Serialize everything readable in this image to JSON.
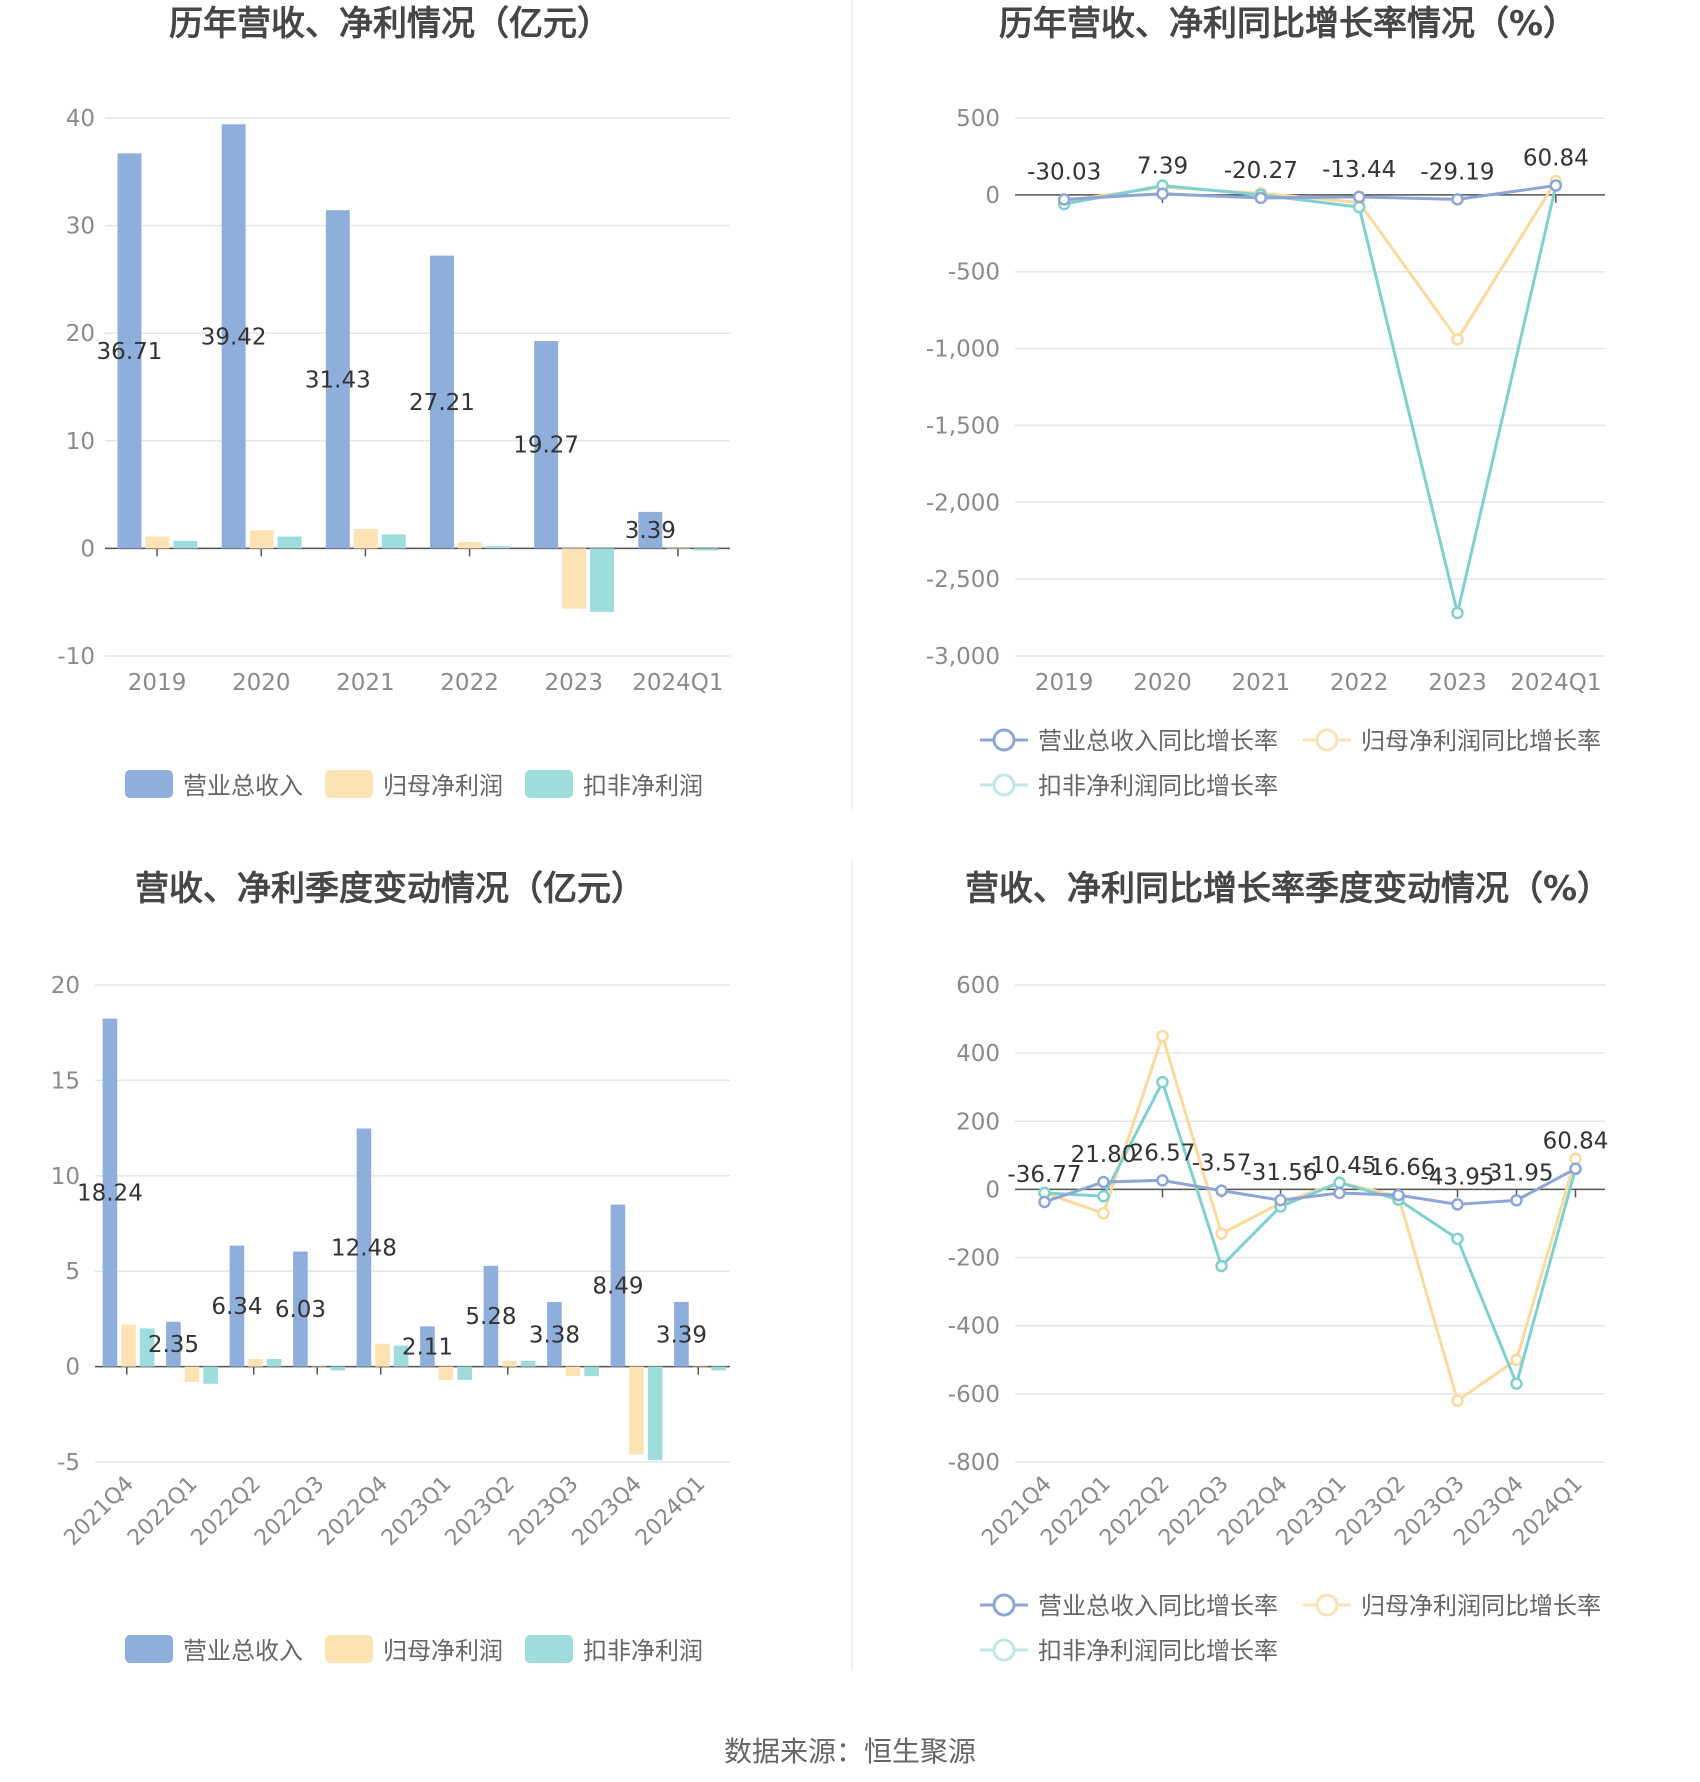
{
  "footer": {
    "source": "数据来源：恒生聚源"
  },
  "colors": {
    "revenue": "#8eaedc",
    "net_profit": "#fde2b4",
    "deducted_profit": "#9fdcdc",
    "revenue_line": "#8da6d6",
    "net_profit_line": "#fcd99c",
    "deducted_line": "#7fd1d1"
  },
  "chart_data": [
    {
      "type": "bar",
      "title": "历年营收、净利情况（亿元）",
      "categories": [
        "2019",
        "2020",
        "2021",
        "2022",
        "2023",
        "2024Q1"
      ],
      "series": [
        {
          "name": "营业总收入",
          "values": [
            36.71,
            39.42,
            31.43,
            27.21,
            19.27,
            3.39
          ],
          "data_labels": [
            "36.71",
            "39.42",
            "31.43",
            "27.21",
            "19.27",
            "3.39"
          ]
        },
        {
          "name": "归母净利润",
          "values": [
            1.1,
            1.7,
            1.8,
            0.6,
            -5.6,
            0.0
          ]
        },
        {
          "name": "扣非净利润",
          "values": [
            0.7,
            1.1,
            1.3,
            0.2,
            -5.9,
            -0.2
          ]
        }
      ],
      "yticks": [
        "40",
        "30",
        "20",
        "10",
        "0",
        "-10"
      ],
      "ylim": [
        -10,
        40
      ]
    },
    {
      "type": "line",
      "title": "历年营收、净利同比增长率情况（%）",
      "categories": [
        "2019",
        "2020",
        "2021",
        "2022",
        "2023",
        "2024Q1"
      ],
      "series": [
        {
          "name": "营业总收入同比增长率",
          "values": [
            -30.03,
            7.39,
            -20.27,
            -13.44,
            -29.19,
            60.84
          ],
          "data_labels": [
            "-30.03",
            "7.39",
            "-20.27",
            "-13.44",
            "-29.19",
            "60.84"
          ]
        },
        {
          "name": "归母净利润同比增长率",
          "values": [
            -40,
            50,
            10,
            -50,
            -940,
            90
          ]
        },
        {
          "name": "扣非净利润同比增长率",
          "values": [
            -60,
            60,
            0,
            -80,
            -2720,
            60
          ]
        }
      ],
      "yticks": [
        "500",
        "0",
        "-500",
        "-1,000",
        "-1,500",
        "-2,000",
        "-2,500",
        "-3,000"
      ],
      "ylim": [
        -3000,
        500
      ]
    },
    {
      "type": "bar",
      "title": "营收、净利季度变动情况（亿元）",
      "categories": [
        "2021Q4",
        "2022Q1",
        "2022Q2",
        "2022Q3",
        "2022Q4",
        "2023Q1",
        "2023Q2",
        "2023Q3",
        "2023Q4",
        "2024Q1"
      ],
      "series": [
        {
          "name": "营业总收入",
          "values": [
            18.24,
            2.35,
            6.34,
            6.03,
            12.48,
            2.11,
            5.28,
            3.38,
            8.49,
            3.39
          ],
          "data_labels": [
            "18.24",
            "2.35",
            "6.34",
            "6.03",
            "12.48",
            "2.11",
            "5.28",
            "3.38",
            "8.49",
            "3.39"
          ]
        },
        {
          "name": "归母净利润",
          "values": [
            2.2,
            -0.8,
            0.4,
            0.0,
            1.2,
            -0.7,
            0.3,
            -0.5,
            -4.6,
            0.0
          ]
        },
        {
          "name": "扣非净利润",
          "values": [
            2.0,
            -0.9,
            0.4,
            -0.2,
            1.1,
            -0.7,
            0.3,
            -0.5,
            -4.9,
            -0.2
          ]
        }
      ],
      "yticks": [
        "20",
        "15",
        "10",
        "5",
        "0",
        "-5"
      ],
      "ylim": [
        -5,
        20
      ]
    },
    {
      "type": "line",
      "title": "营收、净利同比增长率季度变动情况（%）",
      "categories": [
        "2021Q4",
        "2022Q1",
        "2022Q2",
        "2022Q3",
        "2022Q4",
        "2023Q1",
        "2023Q2",
        "2023Q3",
        "2023Q4",
        "2024Q1"
      ],
      "series": [
        {
          "name": "营业总收入同比增长率",
          "values": [
            -36.77,
            21.8,
            26.57,
            -3.57,
            -31.56,
            -10.45,
            -16.66,
            -43.95,
            -31.95,
            60.84
          ],
          "data_labels": [
            "-36.77",
            "21.80",
            "26.57",
            "-3.57",
            "-31.56",
            "-10.45",
            "-16.66",
            "-43.95",
            "-31.95",
            "60.84"
          ]
        },
        {
          "name": "归母净利润同比增长率",
          "values": [
            -10,
            -70,
            450,
            -130,
            -40,
            20,
            -20,
            -620,
            -500,
            90
          ]
        },
        {
          "name": "扣非净利润同比增长率",
          "values": [
            -10,
            -20,
            315,
            -225,
            -50,
            20,
            -30,
            -145,
            -570,
            60
          ]
        }
      ],
      "yticks": [
        "600",
        "400",
        "200",
        "0",
        "-200",
        "-400",
        "-600",
        "-800"
      ],
      "ylim": [
        -800,
        600
      ]
    }
  ]
}
